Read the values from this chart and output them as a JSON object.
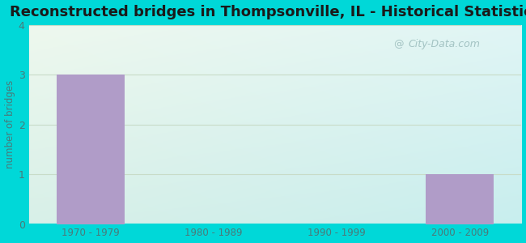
{
  "title": "Reconstructed bridges in Thompsonville, IL - Historical Statistics",
  "categories": [
    "1970 - 1979",
    "1980 - 1989",
    "1990 - 1999",
    "2000 - 2009"
  ],
  "values": [
    3,
    0,
    0,
    1
  ],
  "bar_color": "#b09cc8",
  "ylabel": "number of bridges",
  "ylim": [
    0,
    4
  ],
  "yticks": [
    0,
    1,
    2,
    3,
    4
  ],
  "title_fontsize": 13,
  "axis_label_color": "#4a7a7a",
  "tick_label_color": "#4a7a7a",
  "background_outer": "#00d8d8",
  "grid_color": "#c8dcc8",
  "watermark_text": "City-Data.com",
  "bg_color_topleft": "#e8f5e8",
  "bg_color_bottomright": "#d0f0f0"
}
